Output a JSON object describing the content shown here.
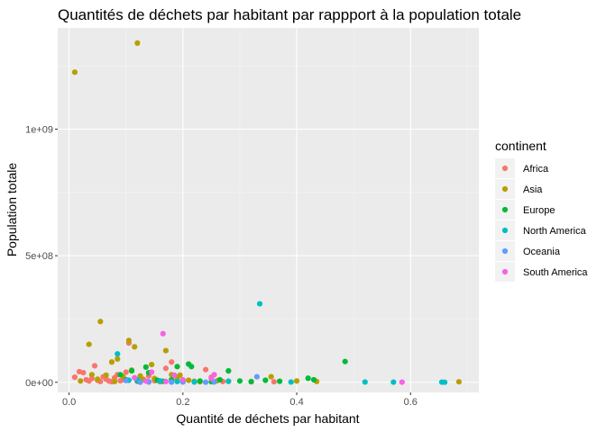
{
  "chart_data": {
    "type": "scatter",
    "title": "Quantités de déchets par habitant par rappport à la population totale",
    "xlabel": "Quantité de déchets par habitant",
    "ylabel": "Population totale",
    "xlim": [
      -0.02,
      0.72
    ],
    "ylim": [
      -40000000,
      1400000000
    ],
    "x_ticks": [
      0,
      0.2,
      0.4,
      0.6
    ],
    "x_tick_labels": [
      "0.0",
      "0.2",
      "0.4",
      "0.6"
    ],
    "y_ticks": [
      0,
      500000000,
      1000000000
    ],
    "y_tick_labels": [
      "0e+00",
      "5e+08",
      "1e+09"
    ],
    "grid": true,
    "legend": {
      "title": "continent",
      "position": "right"
    },
    "series": [
      {
        "name": "Africa",
        "color": "#F8766D",
        "points": [
          [
            0.01,
            20000000
          ],
          [
            0.018,
            42000000
          ],
          [
            0.025,
            38000000
          ],
          [
            0.03,
            10000000
          ],
          [
            0.035,
            5000000
          ],
          [
            0.04,
            15000000
          ],
          [
            0.045,
            65000000
          ],
          [
            0.05,
            8000000
          ],
          [
            0.055,
            3000000
          ],
          [
            0.06,
            22000000
          ],
          [
            0.065,
            12000000
          ],
          [
            0.07,
            5000000
          ],
          [
            0.075,
            2000000
          ],
          [
            0.08,
            18000000
          ],
          [
            0.085,
            30000000
          ],
          [
            0.09,
            6000000
          ],
          [
            0.095,
            10000000
          ],
          [
            0.1,
            40000000
          ],
          [
            0.105,
            155000000
          ],
          [
            0.12,
            4000000
          ],
          [
            0.13,
            12000000
          ],
          [
            0.14,
            25000000
          ],
          [
            0.15,
            6000000
          ],
          [
            0.16,
            2000000
          ],
          [
            0.17,
            55000000
          ],
          [
            0.18,
            80000000
          ],
          [
            0.19,
            10000000
          ],
          [
            0.2,
            3000000
          ],
          [
            0.24,
            50000000
          ],
          [
            0.25,
            20000000
          ],
          [
            0.27,
            3000000
          ],
          [
            0.36,
            2000000
          ]
        ]
      },
      {
        "name": "Asia",
        "color": "#B79F00",
        "points": [
          [
            0.01,
            1225000000
          ],
          [
            0.12,
            1340000000
          ],
          [
            0.055,
            240000000
          ],
          [
            0.035,
            150000000
          ],
          [
            0.105,
            165000000
          ],
          [
            0.115,
            140000000
          ],
          [
            0.085,
            92000000
          ],
          [
            0.17,
            125000000
          ],
          [
            0.075,
            80000000
          ],
          [
            0.04,
            30000000
          ],
          [
            0.065,
            28000000
          ],
          [
            0.095,
            22000000
          ],
          [
            0.11,
            48000000
          ],
          [
            0.125,
            25000000
          ],
          [
            0.13,
            10000000
          ],
          [
            0.145,
            70000000
          ],
          [
            0.15,
            15000000
          ],
          [
            0.16,
            5000000
          ],
          [
            0.18,
            30000000
          ],
          [
            0.19,
            20000000
          ],
          [
            0.195,
            28000000
          ],
          [
            0.21,
            8000000
          ],
          [
            0.22,
            4000000
          ],
          [
            0.23,
            2000000
          ],
          [
            0.26,
            6000000
          ],
          [
            0.28,
            4000000
          ],
          [
            0.32,
            3000000
          ],
          [
            0.355,
            22000000
          ],
          [
            0.4,
            5000000
          ],
          [
            0.435,
            3000000
          ],
          [
            0.685,
            2000000
          ],
          [
            0.02,
            5000000
          ],
          [
            0.05,
            12000000
          ],
          [
            0.08,
            3000000
          ]
        ]
      },
      {
        "name": "Europe",
        "color": "#00BA38",
        "points": [
          [
            0.09,
            30000000
          ],
          [
            0.1,
            10000000
          ],
          [
            0.11,
            45000000
          ],
          [
            0.12,
            5000000
          ],
          [
            0.135,
            60000000
          ],
          [
            0.14,
            38000000
          ],
          [
            0.155,
            8000000
          ],
          [
            0.165,
            4000000
          ],
          [
            0.18,
            10000000
          ],
          [
            0.19,
            62000000
          ],
          [
            0.2,
            3000000
          ],
          [
            0.21,
            72000000
          ],
          [
            0.215,
            62000000
          ],
          [
            0.23,
            5000000
          ],
          [
            0.25,
            2000000
          ],
          [
            0.265,
            10000000
          ],
          [
            0.28,
            45000000
          ],
          [
            0.3,
            5000000
          ],
          [
            0.32,
            2000000
          ],
          [
            0.345,
            8000000
          ],
          [
            0.37,
            4000000
          ],
          [
            0.42,
            16000000
          ],
          [
            0.43,
            10000000
          ],
          [
            0.485,
            82000000
          ]
        ]
      },
      {
        "name": "North America",
        "color": "#00BFC4",
        "points": [
          [
            0.085,
            112000000
          ],
          [
            0.335,
            310000000
          ],
          [
            0.12,
            10000000
          ],
          [
            0.16,
            5000000
          ],
          [
            0.19,
            3000000
          ],
          [
            0.22,
            1000000
          ],
          [
            0.28,
            4000000
          ],
          [
            0.39,
            1000000
          ],
          [
            0.52,
            1000000
          ],
          [
            0.57,
            500000
          ],
          [
            0.655,
            500000
          ],
          [
            0.66,
            300000
          ],
          [
            0.105,
            8000000
          ],
          [
            0.14,
            2000000
          ]
        ]
      },
      {
        "name": "Oceania",
        "color": "#619CFF",
        "points": [
          [
            0.1,
            7000000
          ],
          [
            0.14,
            1000000
          ],
          [
            0.18,
            500000
          ],
          [
            0.24,
            200000
          ],
          [
            0.255,
            1000000
          ],
          [
            0.33,
            22000000
          ],
          [
            0.125,
            300000
          ],
          [
            0.2,
            1000000
          ]
        ]
      },
      {
        "name": "South America",
        "color": "#F564E3",
        "points": [
          [
            0.165,
            192000000
          ],
          [
            0.115,
            18000000
          ],
          [
            0.145,
            40000000
          ],
          [
            0.185,
            28000000
          ],
          [
            0.2,
            10000000
          ],
          [
            0.25,
            15000000
          ],
          [
            0.255,
            30000000
          ],
          [
            0.585,
            500000
          ],
          [
            0.135,
            5000000
          ],
          [
            0.17,
            3000000
          ]
        ]
      }
    ]
  }
}
